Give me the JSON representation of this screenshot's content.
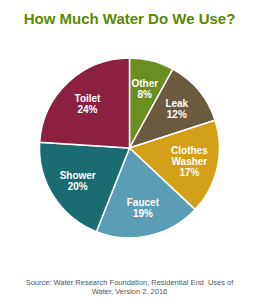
{
  "chart_data": {
    "type": "pie",
    "title": "How Much Water Do We Use?",
    "categories": [
      "Other",
      "Leak",
      "Clothes\nWasher",
      "Faucet",
      "Shower",
      "Toilet"
    ],
    "values": [
      8,
      12,
      17,
      19,
      20,
      24
    ],
    "value_labels": [
      "8%",
      "12%",
      "17%",
      "19%",
      "20%",
      "24%"
    ],
    "colors": [
      "#6b8e23",
      "#6b5a3e",
      "#d4a017",
      "#5b9db5",
      "#1a6b72",
      "#8b2040"
    ],
    "data_labels": true,
    "annotations": [
      "Source: Water Research Foundation, Residential End  Uses of\nWater, Version 2. 2016"
    ]
  }
}
